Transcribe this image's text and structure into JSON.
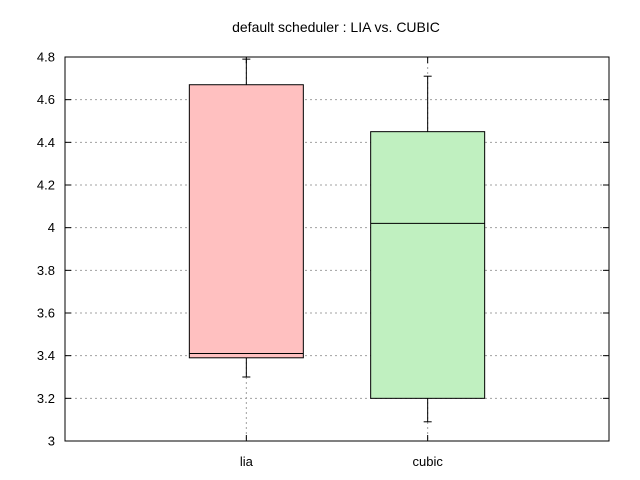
{
  "chart_data": {
    "type": "box",
    "title": "default scheduler : LIA vs. CUBIC",
    "xlabel": "",
    "ylabel": "",
    "ylim": [
      3,
      4.8
    ],
    "yticks": [
      3,
      3.2,
      3.4,
      3.6,
      3.8,
      4,
      4.2,
      4.4,
      4.6,
      4.8
    ],
    "ytick_labels": [
      "3",
      "3.2",
      "3.4",
      "3.6",
      "3.8",
      "4",
      "4.2",
      "4.4",
      "4.6",
      "4.8"
    ],
    "grid": true,
    "categories": [
      "lia",
      "cubic"
    ],
    "boxes": [
      {
        "category": "lia",
        "min": 3.3,
        "q1": 3.39,
        "median": 3.41,
        "q3": 4.67,
        "max": 4.79,
        "color": "#ffc0c0"
      },
      {
        "category": "cubic",
        "min": 3.09,
        "q1": 3.2,
        "median": 4.02,
        "q3": 4.45,
        "max": 4.71,
        "color": "#c0f0c0"
      }
    ]
  }
}
